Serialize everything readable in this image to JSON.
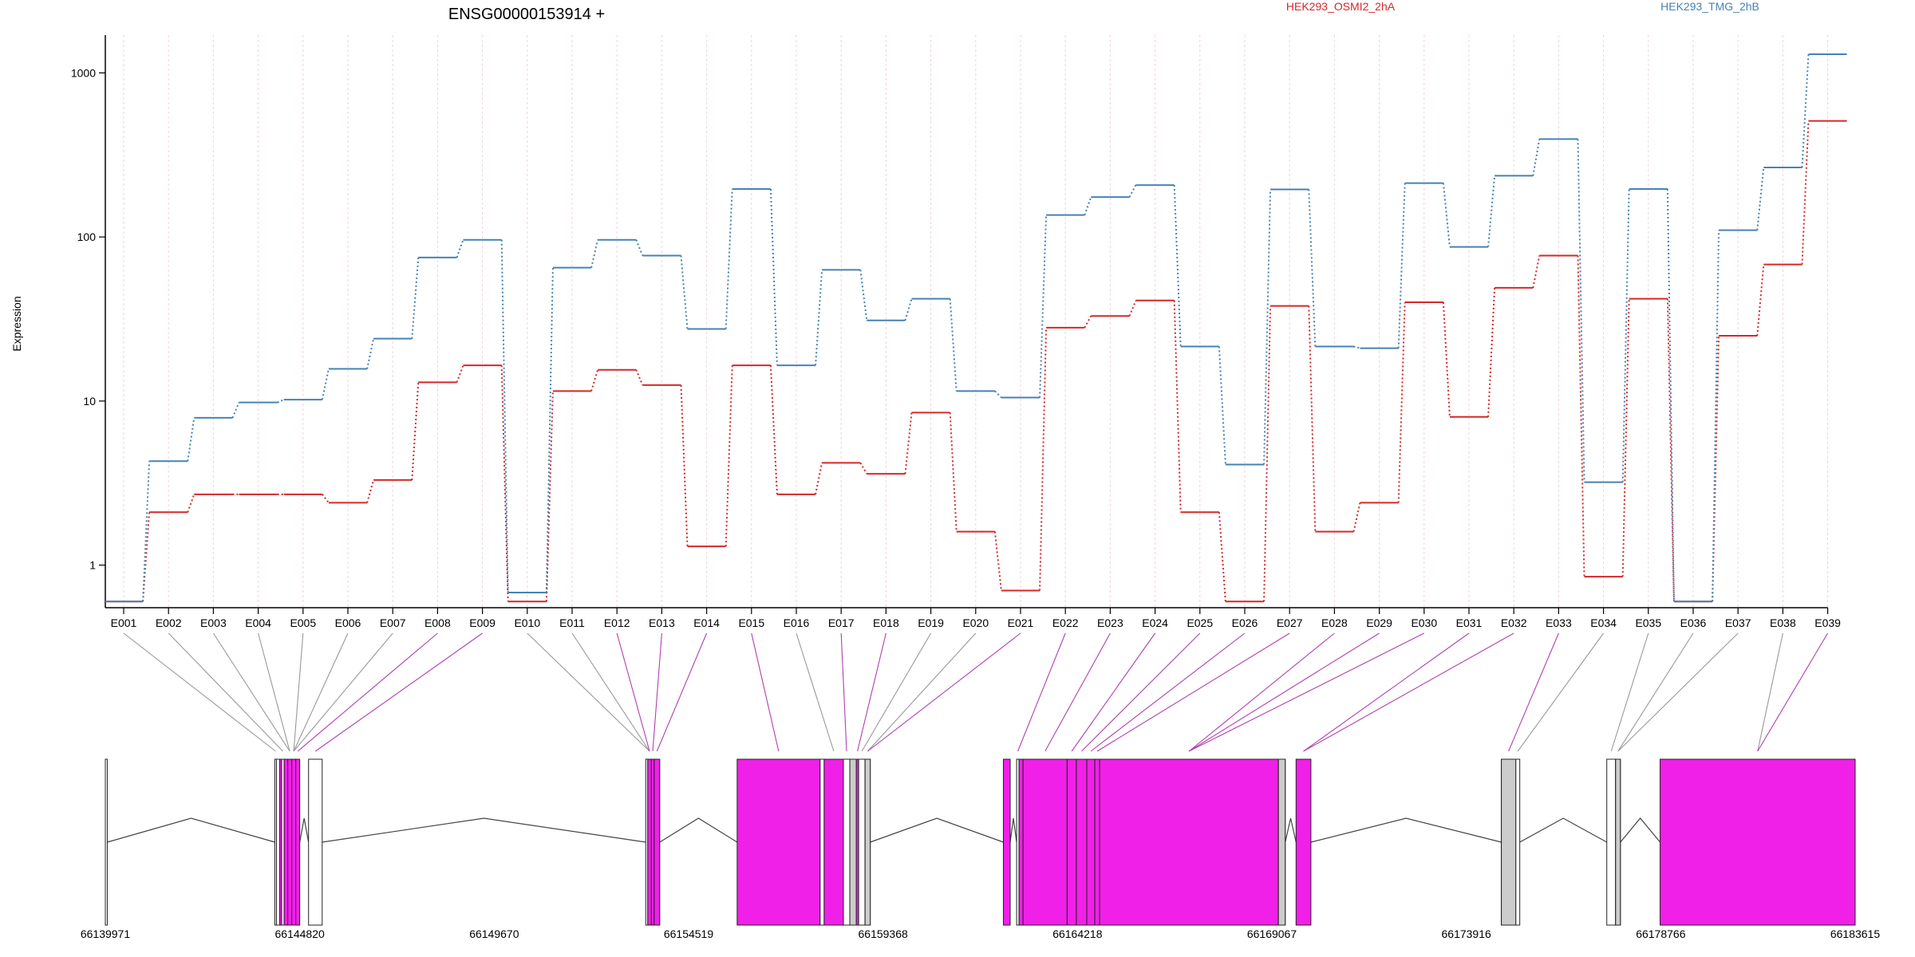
{
  "chart_data": {
    "type": "line",
    "title": "ENSG00000153914 +",
    "ylabel": "Expression",
    "yscale": "log",
    "ylim": [
      0.55,
      1700
    ],
    "yticks": [
      1,
      10,
      100,
      1000
    ],
    "ytick_labels": [
      "1",
      "10",
      "100",
      "1000"
    ],
    "categories": [
      "E001",
      "E002",
      "E003",
      "E004",
      "E005",
      "E006",
      "E007",
      "E008",
      "E009",
      "E010",
      "E011",
      "E012",
      "E013",
      "E014",
      "E015",
      "E016",
      "E017",
      "E018",
      "E019",
      "E020",
      "E021",
      "E022",
      "E023",
      "E024",
      "E025",
      "E026",
      "E027",
      "E028",
      "E029",
      "E030",
      "E031",
      "E032",
      "E033",
      "E034",
      "E035",
      "E036",
      "E037",
      "E038",
      "E039"
    ],
    "series": [
      {
        "name": "HEK293_OSMI2_2hA",
        "color": "#d62728",
        "values": [
          0.6,
          2.1,
          2.7,
          2.7,
          2.7,
          2.4,
          3.3,
          13,
          16.5,
          0.6,
          11.5,
          15.5,
          12.5,
          1.3,
          16.5,
          2.7,
          4.2,
          3.6,
          8.5,
          1.6,
          0.7,
          28,
          33,
          41,
          2.1,
          0.6,
          38,
          1.6,
          2.4,
          40,
          8,
          49,
          77,
          0.85,
          42,
          0.6,
          25,
          68,
          510
        ]
      },
      {
        "name": "HEK293_TMG_2hB",
        "color": "#4682b4",
        "values": [
          0.6,
          4.3,
          7.9,
          9.8,
          10.2,
          15.7,
          24,
          75,
          96,
          0.68,
          65,
          96,
          77,
          27.5,
          196,
          16.5,
          63,
          31,
          42,
          11.5,
          10.5,
          136,
          175,
          207,
          21.5,
          4.1,
          195,
          21.5,
          21,
          213,
          87,
          236,
          395,
          3.2,
          196,
          0.6,
          110,
          265,
          1300
        ]
      }
    ],
    "genome": {
      "xlim": [
        66139971,
        66183615
      ],
      "tick_values": [
        66139971,
        66144820,
        66149670,
        66154519,
        66159368,
        66164218,
        66169067,
        66173916,
        66178766,
        66183615
      ],
      "tick_labels": [
        "66139971",
        "66144820",
        "66149670",
        "66154519",
        "66159368",
        "66164218",
        "66169067",
        "66173916",
        "66178766",
        "66183615"
      ],
      "exons": [
        {
          "start": 66139971,
          "end": 66140020,
          "highlight": false
        },
        {
          "start": 66144200,
          "end": 66144240,
          "highlight": false
        },
        {
          "start": 66144240,
          "end": 66144320,
          "highlight": false
        },
        {
          "start": 66144320,
          "end": 66144370,
          "highlight": true
        },
        {
          "start": 66144370,
          "end": 66144430,
          "highlight": false
        },
        {
          "start": 66144430,
          "end": 66144520,
          "highlight": true
        },
        {
          "start": 66144520,
          "end": 66144620,
          "highlight": true
        },
        {
          "start": 66144620,
          "end": 66144720,
          "highlight": true
        },
        {
          "start": 66144720,
          "end": 66144820,
          "highlight": true
        },
        {
          "start": 66145040,
          "end": 66145380,
          "highlight": false
        },
        {
          "start": 66153450,
          "end": 66153500,
          "highlight": false
        },
        {
          "start": 66153500,
          "end": 66153590,
          "highlight": true
        },
        {
          "start": 66153590,
          "end": 66153660,
          "highlight": true
        },
        {
          "start": 66153660,
          "end": 66153800,
          "highlight": true
        },
        {
          "start": 66155730,
          "end": 66157800,
          "highlight": true
        },
        {
          "start": 66157800,
          "end": 66157900,
          "highlight": false
        },
        {
          "start": 66157900,
          "end": 66158380,
          "highlight": true
        },
        {
          "start": 66158380,
          "end": 66158540,
          "highlight": false
        },
        {
          "start": 66158540,
          "end": 66158700,
          "highlight": false
        },
        {
          "start": 66158700,
          "end": 66158760,
          "highlight": true
        },
        {
          "start": 66158760,
          "end": 66158920,
          "highlight": false
        },
        {
          "start": 66158920,
          "end": 66159050,
          "highlight": false
        },
        {
          "start": 66162370,
          "end": 66162540,
          "highlight": true
        },
        {
          "start": 66162700,
          "end": 66162760,
          "highlight": false
        },
        {
          "start": 66162760,
          "end": 66162860,
          "highlight": true
        },
        {
          "start": 66162860,
          "end": 66163960,
          "highlight": true
        },
        {
          "start": 66163960,
          "end": 66164190,
          "highlight": true
        },
        {
          "start": 66164190,
          "end": 66164450,
          "highlight": true
        },
        {
          "start": 66164450,
          "end": 66164650,
          "highlight": true
        },
        {
          "start": 66164650,
          "end": 66164770,
          "highlight": true
        },
        {
          "start": 66164770,
          "end": 66169230,
          "highlight": true
        },
        {
          "start": 66169230,
          "end": 66169400,
          "highlight": false
        },
        {
          "start": 66169670,
          "end": 66170040,
          "highlight": true
        },
        {
          "start": 66174790,
          "end": 66175150,
          "highlight": false
        },
        {
          "start": 66175150,
          "end": 66175250,
          "highlight": false
        },
        {
          "start": 66177420,
          "end": 66177640,
          "highlight": false
        },
        {
          "start": 66177640,
          "end": 66177760,
          "highlight": false
        },
        {
          "start": 66178750,
          "end": 66183615,
          "highlight": true
        }
      ],
      "exon_connectors": [
        1,
        4,
        6,
        6,
        7,
        7,
        7,
        8,
        9,
        11,
        11,
        11,
        12,
        13,
        14,
        16,
        17,
        19,
        20,
        21,
        21,
        23,
        25,
        26,
        27,
        28,
        29,
        30,
        30,
        30,
        32,
        32,
        33,
        34,
        35,
        36,
        36,
        37,
        37
      ],
      "highlighted_bins": [
        8,
        9,
        12,
        13,
        14,
        15,
        17,
        18,
        21,
        22,
        23,
        24,
        25,
        26,
        27,
        28,
        29,
        30,
        31,
        32,
        33,
        39
      ]
    },
    "grid": false,
    "legend": "top"
  },
  "colors": {
    "highlight_exon": "#f020e8",
    "plain_exon": "#ffffff",
    "grey_exon": "#cccccc",
    "highlight_connector": "#b040b0",
    "plain_connector": "#999999",
    "bin_grid": "#f2cfe6",
    "axis": "#000000"
  }
}
